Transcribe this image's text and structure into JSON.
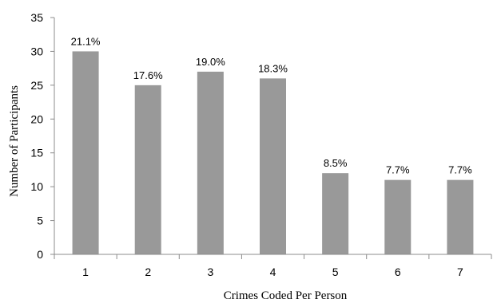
{
  "chart_data": {
    "type": "bar",
    "categories": [
      "1",
      "2",
      "3",
      "4",
      "5",
      "6",
      "7"
    ],
    "values": [
      30,
      25,
      27,
      26,
      12,
      11,
      11
    ],
    "data_labels": [
      "21.1%",
      "17.6%",
      "19.0%",
      "18.3%",
      "8.5%",
      "7.7%",
      "7.7%"
    ],
    "xlabel": "Crimes Coded Per Person",
    "ylabel": "Number of Participants",
    "ylim": [
      0,
      35
    ],
    "yticks": [
      0,
      5,
      10,
      15,
      20,
      25,
      30,
      35
    ],
    "grid": false,
    "legend": "none",
    "bar_color": "#999999"
  }
}
